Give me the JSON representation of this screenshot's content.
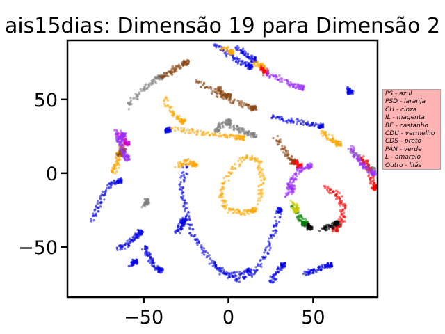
{
  "chart_data": {
    "type": "scatter",
    "title": "ais15dias: Dimensão 19 para Dimensão 2",
    "xlabel": "",
    "ylabel": "",
    "xlim": [
      -95,
      88
    ],
    "ylim": [
      -84,
      90
    ],
    "xticks": [
      -50,
      0,
      50
    ],
    "yticks": [
      -50,
      0,
      50
    ],
    "xtick_labels": [
      "−50",
      "0",
      "50"
    ],
    "ytick_labels": [
      "−50",
      "0",
      "50"
    ],
    "grid": false,
    "legend_placement": "right, outside plot",
    "legend": [
      "PS - azul",
      "PSD - laranja",
      "CH - cinza",
      "IL - magenta",
      "BE - castanho",
      "CDU - vermelho",
      "CDS - preto",
      "PAN - verde",
      "L - amarelo",
      "Outro - lilás"
    ],
    "colors": {
      "PS": "#0000e6",
      "PSD": "#ffa500",
      "CH": "#808080",
      "IL": "#cc00cc",
      "BE": "#8b4513",
      "CDU": "#ff0000",
      "CDS": "#000000",
      "PAN": "#008000",
      "L": "#cccc00",
      "Outro": "#9b30ff"
    },
    "series": [
      {
        "party": "PS",
        "color": "#0000e6",
        "paths": [
          [
            [
              -25,
              5
            ],
            [
              -28,
              -10
            ],
            [
              -25,
              -25
            ],
            [
              -22,
              -40
            ],
            [
              -15,
              -52
            ],
            [
              -5,
              -65
            ],
            [
              5,
              -72
            ],
            [
              15,
              -68
            ],
            [
              22,
              -55
            ],
            [
              27,
              -40
            ],
            [
              30,
              -25
            ]
          ],
          [
            [
              -80,
              -32
            ],
            [
              -76,
              -20
            ],
            [
              -70,
              -8
            ],
            [
              -64,
              -5
            ]
          ],
          [
            [
              -8,
              88
            ],
            [
              0,
              80
            ],
            [
              8,
              75
            ],
            [
              13,
              72
            ]
          ],
          [
            [
              5,
              85
            ],
            [
              10,
              80
            ],
            [
              15,
              77
            ]
          ],
          [
            [
              25,
              38
            ],
            [
              35,
              36
            ],
            [
              45,
              34
            ],
            [
              55,
              32
            ]
          ],
          [
            [
              -65,
              -52
            ],
            [
              -60,
              -48
            ],
            [
              -55,
              -44
            ],
            [
              -52,
              -40
            ]
          ],
          [
            [
              -50,
              -50
            ],
            [
              -47,
              -56
            ],
            [
              -44,
              -62
            ],
            [
              -40,
              -66
            ]
          ],
          [
            [
              -58,
              -62
            ],
            [
              -55,
              -60
            ]
          ],
          [
            [
              25,
              -74
            ],
            [
              28,
              -68
            ],
            [
              32,
              -62
            ]
          ],
          [
            [
              45,
              -68
            ],
            [
              50,
              -66
            ],
            [
              55,
              -64
            ],
            [
              60,
              -62
            ]
          ],
          [
            [
              70,
              57
            ],
            [
              72,
              55
            ]
          ],
          [
            [
              -35,
              30
            ],
            [
              -36,
              29
            ]
          ],
          [
            [
              -25,
              -30
            ],
            [
              -30,
              -40
            ],
            [
              -27,
              -33
            ]
          ],
          [
            [
              -10,
              -62
            ],
            [
              0,
              -70
            ],
            [
              12,
              -66
            ]
          ]
        ]
      },
      {
        "party": "PSD",
        "color": "#ffa500",
        "paths": [
          [
            [
              -33,
              30
            ],
            [
              -20,
              28
            ],
            [
              -8,
              26
            ],
            [
              2,
              25
            ],
            [
              8,
              24
            ]
          ],
          [
            [
              -38,
              50
            ],
            [
              -32,
              40
            ],
            [
              -27,
              35
            ]
          ],
          [
            [
              18,
              -20
            ],
            [
              20,
              -5
            ],
            [
              18,
              8
            ],
            [
              10,
              12
            ],
            [
              0,
              0
            ],
            [
              -5,
              -15
            ],
            [
              0,
              -25
            ],
            [
              8,
              -27
            ],
            [
              15,
              -25
            ]
          ],
          [
            [
              15,
              75
            ],
            [
              20,
              72
            ]
          ],
          [
            [
              -68,
              0
            ],
            [
              -66,
              5
            ],
            [
              -65,
              12
            ],
            [
              -63,
              18
            ]
          ],
          [
            [
              -30,
              5
            ],
            [
              -25,
              8
            ],
            [
              -20,
              6
            ]
          ],
          [
            [
              55,
              28
            ],
            [
              60,
              24
            ],
            [
              65,
              20
            ]
          ],
          [
            [
              -3,
              85
            ],
            [
              2,
              82
            ]
          ]
        ]
      },
      {
        "party": "CH",
        "color": "#808080",
        "paths": [
          [
            [
              -60,
              45
            ],
            [
              -52,
              55
            ],
            [
              -45,
              62
            ],
            [
              -40,
              65
            ]
          ],
          [
            [
              0,
              33
            ],
            [
              5,
              30
            ],
            [
              10,
              28
            ],
            [
              15,
              26
            ]
          ],
          [
            [
              -7,
              28
            ],
            [
              -5,
              32
            ],
            [
              0,
              35
            ]
          ],
          [
            [
              73,
              14
            ],
            [
              78,
              10
            ],
            [
              82,
              5
            ],
            [
              85,
              2
            ]
          ],
          [
            [
              -50,
              -22
            ],
            [
              -48,
              -19
            ]
          ]
        ]
      },
      {
        "party": "IL",
        "color": "#cc00cc",
        "paths": [
          [
            [
              -66,
              28
            ],
            [
              -62,
              24
            ],
            [
              -60,
              20
            ]
          ]
        ]
      },
      {
        "party": "BE",
        "color": "#8b4513",
        "paths": [
          [
            [
              -40,
              65
            ],
            [
              -35,
              68
            ],
            [
              -30,
              72
            ],
            [
              -25,
              75
            ]
          ],
          [
            [
              -18,
              62
            ],
            [
              -10,
              56
            ],
            [
              0,
              50
            ],
            [
              10,
              46
            ],
            [
              15,
              44
            ]
          ],
          [
            [
              -7,
              58
            ],
            [
              -3,
              54
            ],
            [
              0,
              52
            ]
          ],
          [
            [
              28,
              24
            ],
            [
              33,
              15
            ],
            [
              38,
              8
            ]
          ],
          [
            [
              -65,
              12
            ],
            [
              -62,
              15
            ]
          ]
        ]
      },
      {
        "party": "CDU",
        "color": "#ff0000",
        "paths": [
          [
            [
              57,
              -10
            ],
            [
              64,
              -14
            ],
            [
              68,
              -22
            ],
            [
              67,
              -32
            ],
            [
              63,
              -38
            ]
          ],
          [
            [
              38,
              8
            ],
            [
              42,
              5
            ]
          ],
          [
            [
              79,
              10
            ],
            [
              82,
              5
            ],
            [
              85,
              -5
            ],
            [
              86,
              -10
            ]
          ],
          [
            [
              20,
              72
            ],
            [
              22,
              68
            ]
          ]
        ]
      },
      {
        "party": "CDS",
        "color": "#000000",
        "paths": [
          [
            [
              55,
              -38
            ],
            [
              60,
              -36
            ],
            [
              64,
              -34
            ]
          ],
          [
            [
              45,
              -34
            ],
            [
              48,
              -37
            ]
          ]
        ]
      },
      {
        "party": "PAN",
        "color": "#008000",
        "paths": [
          [
            [
              38,
              -22
            ],
            [
              42,
              -30
            ],
            [
              45,
              -34
            ]
          ]
        ]
      },
      {
        "party": "L",
        "color": "#cccc00",
        "paths": [
          [
            [
              38,
              -20
            ],
            [
              40,
              -25
            ]
          ]
        ]
      },
      {
        "party": "Outro",
        "color": "#9b30ff",
        "paths": [
          [
            [
              -65,
              28
            ],
            [
              -64,
              20
            ],
            [
              -62,
              14
            ],
            [
              -60,
              10
            ]
          ],
          [
            [
              35,
              -10
            ],
            [
              38,
              -5
            ],
            [
              42,
              2
            ],
            [
              48,
              5
            ]
          ],
          [
            [
              35,
              -15
            ],
            [
              38,
              -10
            ]
          ],
          [
            [
              22,
              68
            ],
            [
              30,
              64
            ],
            [
              38,
              60
            ],
            [
              43,
              58
            ]
          ],
          [
            [
              72,
              18
            ],
            [
              76,
              10
            ],
            [
              80,
              4
            ],
            [
              86,
              0
            ]
          ],
          [
            [
              -65,
              22
            ],
            [
              -62,
              26
            ]
          ]
        ]
      }
    ]
  }
}
